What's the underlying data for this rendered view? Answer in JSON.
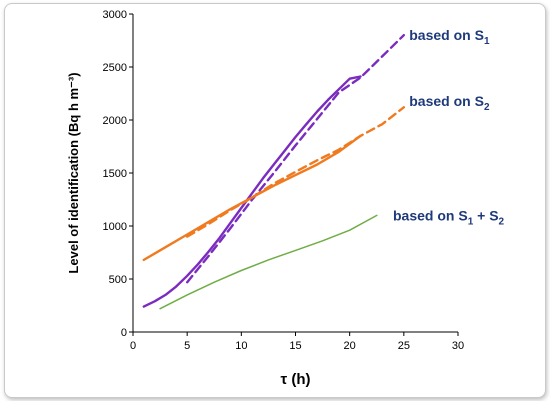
{
  "chart_data": {
    "type": "line",
    "xlabel": "τ (h)",
    "ylabel": "Level of identification (Bq h m⁻³)",
    "xlim": [
      0,
      30
    ],
    "ylim": [
      0,
      3000
    ],
    "x_ticks": [
      "0",
      "5",
      "10",
      "15",
      "20",
      "25",
      "30"
    ],
    "y_ticks": [
      "0",
      "500",
      "1000",
      "1500",
      "2000",
      "2500",
      "3000"
    ],
    "grid": false,
    "legend": "none",
    "annotations": [
      {
        "base": "based on S",
        "sub": "1",
        "x": 25.5,
        "y": 2800,
        "color": "#1f3a7a"
      },
      {
        "base": "based on S",
        "sub": "2",
        "x": 25.5,
        "y": 2180,
        "color": "#1f3a7a"
      },
      {
        "base": "based on S",
        "sub": "1",
        "rest": " + S",
        "sub2": "2",
        "x": 24,
        "y": 1100,
        "color": "#1f3a7a"
      }
    ],
    "series": [
      {
        "color": "#7b2cbf",
        "style": "solid",
        "x": [
          1,
          2,
          3,
          4,
          5,
          6,
          7,
          8,
          9,
          10,
          11,
          12,
          13,
          14,
          15,
          16,
          17,
          18,
          19,
          20,
          21
        ],
        "y": [
          240,
          290,
          350,
          430,
          530,
          640,
          760,
          890,
          1030,
          1170,
          1310,
          1450,
          1580,
          1710,
          1840,
          1960,
          2080,
          2190,
          2290,
          2390,
          2410
        ]
      },
      {
        "color": "#7b2cbf",
        "style": "dashed",
        "x": [
          5,
          7,
          9,
          11,
          13,
          15,
          17,
          19,
          21,
          23,
          25
        ],
        "y": [
          470,
          720,
          980,
          1250,
          1500,
          1760,
          2010,
          2260,
          2400,
          2600,
          2800
        ]
      },
      {
        "color": "#f07a1f",
        "style": "solid",
        "x": [
          1,
          3,
          5,
          7,
          9,
          11,
          13,
          15,
          17,
          19,
          21
        ],
        "y": [
          680,
          800,
          920,
          1040,
          1160,
          1270,
          1380,
          1480,
          1580,
          1700,
          1850
        ]
      },
      {
        "color": "#f07a1f",
        "style": "dashed",
        "x": [
          5,
          7,
          9,
          11,
          13,
          15,
          17,
          19,
          21,
          23,
          25
        ],
        "y": [
          900,
          1020,
          1150,
          1270,
          1400,
          1510,
          1620,
          1720,
          1850,
          1960,
          2120
        ]
      },
      {
        "color": "#70ad47",
        "style": "solid",
        "x": [
          2.5,
          5,
          7.5,
          10,
          12.5,
          15,
          17.5,
          20,
          22.5
        ],
        "y": [
          220,
          350,
          470,
          580,
          680,
          770,
          860,
          960,
          1100
        ]
      }
    ]
  }
}
